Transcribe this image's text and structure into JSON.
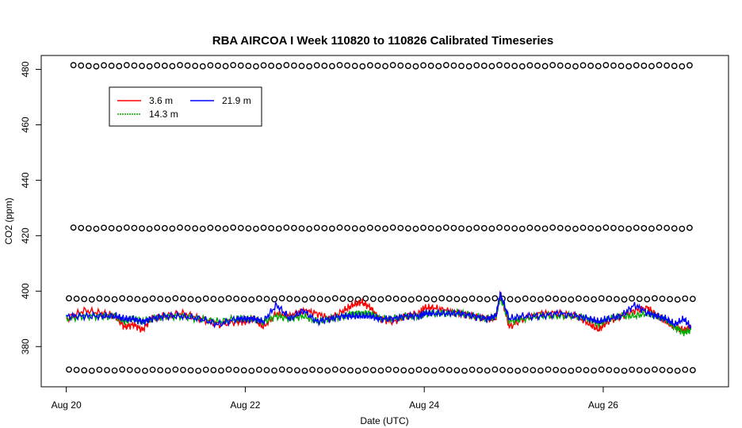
{
  "chart_data": {
    "type": "line",
    "title": "RBA AIRCOA I  Week 110820 to 110826  Calibrated Timeseries",
    "xlabel": "Date (UTC)",
    "ylabel": "CO2 (ppm)",
    "x_unit": "days",
    "xlim": [
      -0.28,
      7.4
    ],
    "ylim": [
      365.5,
      485
    ],
    "x_ticks": [
      {
        "value": 0,
        "label": "Aug 20"
      },
      {
        "value": 2,
        "label": "Aug 22"
      },
      {
        "value": 4,
        "label": "Aug 24"
      },
      {
        "value": 6,
        "label": "Aug 26"
      }
    ],
    "y_ticks": [
      380,
      400,
      420,
      440,
      460,
      480
    ],
    "legend": {
      "position": "top-left",
      "entries": [
        {
          "name": "3.6 m",
          "color": "#ff0000"
        },
        {
          "name": "21.9 m",
          "color": "#0000ff"
        },
        {
          "name": "14.3 m",
          "color": "#00aa00"
        }
      ]
    },
    "series": [
      {
        "name": "3.6 m",
        "color": "#ff0000",
        "x": [
          0,
          0.2,
          0.4,
          0.55,
          0.65,
          0.75,
          0.85,
          0.95,
          1.1,
          1.3,
          1.5,
          1.7,
          1.9,
          2.0,
          2.1,
          2.2,
          2.35,
          2.5,
          2.65,
          2.8,
          2.95,
          3.1,
          3.2,
          3.3,
          3.4,
          3.5,
          3.65,
          3.8,
          3.95,
          4.0,
          4.1,
          4.25,
          4.4,
          4.55,
          4.7,
          4.8,
          4.85,
          4.95,
          5.1,
          5.3,
          5.5,
          5.7,
          5.85,
          5.95,
          6.05,
          6.2,
          6.35,
          6.5,
          6.6,
          6.7,
          6.8,
          6.9,
          6.98
        ],
        "y": [
          390,
          393,
          392,
          391,
          387,
          388,
          386,
          390,
          391,
          392,
          390,
          388,
          389,
          389,
          390,
          387,
          392,
          391,
          393,
          392,
          390,
          393,
          395,
          396,
          394,
          390,
          389,
          391,
          392,
          394,
          394,
          393,
          392,
          391,
          390,
          390,
          399,
          387,
          390,
          392,
          392,
          391,
          388,
          386,
          389,
          391,
          393,
          394,
          391,
          389,
          387,
          386,
          387
        ]
      },
      {
        "name": "14.3 m",
        "color": "#00aa00",
        "x": [
          0,
          0.2,
          0.4,
          0.55,
          0.65,
          0.75,
          0.85,
          0.95,
          1.1,
          1.3,
          1.5,
          1.7,
          1.9,
          2.0,
          2.1,
          2.2,
          2.35,
          2.5,
          2.65,
          2.8,
          2.95,
          3.1,
          3.2,
          3.3,
          3.4,
          3.5,
          3.65,
          3.8,
          3.95,
          4.0,
          4.1,
          4.25,
          4.4,
          4.55,
          4.7,
          4.8,
          4.85,
          4.95,
          5.1,
          5.3,
          5.5,
          5.7,
          5.85,
          5.95,
          6.05,
          6.2,
          6.35,
          6.5,
          6.6,
          6.7,
          6.8,
          6.9,
          6.98
        ],
        "y": [
          390,
          391,
          391,
          391,
          389,
          390,
          389,
          390,
          391,
          391,
          390,
          389,
          390,
          390,
          390,
          389,
          391,
          390,
          391,
          389,
          390,
          391,
          392,
          392,
          392,
          390,
          390,
          391,
          391,
          392,
          392,
          392,
          392,
          391,
          390,
          391,
          398,
          389,
          390,
          391,
          391,
          391,
          390,
          388,
          390,
          391,
          391,
          392,
          391,
          390,
          387,
          385,
          386
        ]
      },
      {
        "name": "21.9 m",
        "color": "#0000ff",
        "x": [
          0,
          0.2,
          0.4,
          0.55,
          0.65,
          0.75,
          0.85,
          0.95,
          1.1,
          1.3,
          1.5,
          1.7,
          1.9,
          2.0,
          2.1,
          2.2,
          2.35,
          2.5,
          2.65,
          2.8,
          2.95,
          3.1,
          3.2,
          3.3,
          3.4,
          3.5,
          3.65,
          3.8,
          3.95,
          4.0,
          4.1,
          4.25,
          4.4,
          4.55,
          4.7,
          4.8,
          4.85,
          4.95,
          5.1,
          5.3,
          5.5,
          5.7,
          5.85,
          5.95,
          6.05,
          6.2,
          6.35,
          6.5,
          6.6,
          6.7,
          6.8,
          6.9,
          6.98
        ],
        "y": [
          391,
          391,
          391,
          391,
          390,
          390,
          389,
          390,
          391,
          391,
          390,
          388,
          390,
          390,
          390,
          389,
          395,
          390,
          393,
          389,
          390,
          391,
          391,
          391,
          391,
          390,
          390,
          391,
          391,
          392,
          392,
          392,
          392,
          391,
          390,
          391,
          399,
          390,
          391,
          391,
          392,
          391,
          390,
          389,
          390,
          391,
          395,
          392,
          391,
          390,
          388,
          390,
          387
        ]
      }
    ],
    "calibration_points": [
      {
        "y": 481.3,
        "x_start": 0.08,
        "x_end": 7.0
      },
      {
        "y": 422.7,
        "x_start": 0.08,
        "x_end": 7.0
      },
      {
        "y": 397.2,
        "x_start": 0.03,
        "x_end": 7.0
      },
      {
        "y": 371.5,
        "x_start": 0.03,
        "x_end": 7.0
      }
    ]
  }
}
